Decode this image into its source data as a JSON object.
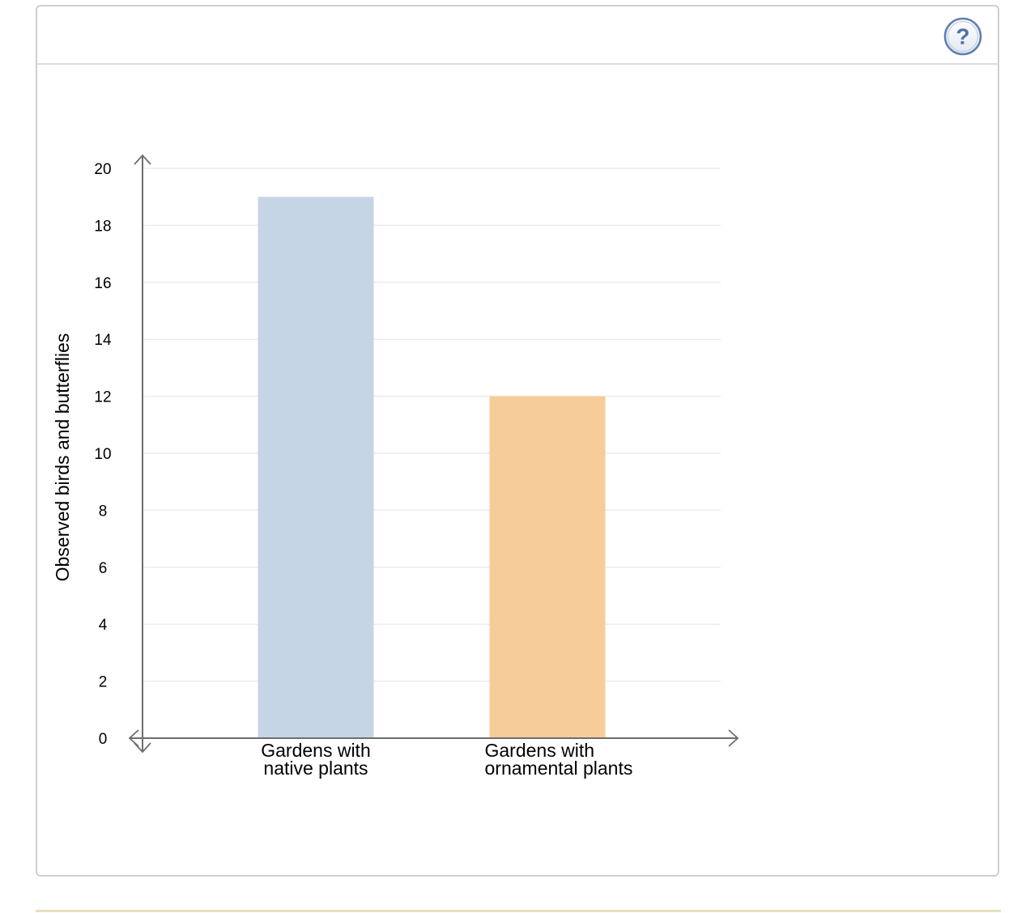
{
  "help": {
    "glyph": "?",
    "icon": "help-icon",
    "color": "#4f72a8"
  },
  "chart_data": {
    "type": "bar",
    "categories": [
      [
        "Gardens with",
        "native plants"
      ],
      [
        "Gardens with",
        "ornamental plants"
      ]
    ],
    "values": [
      19,
      12
    ],
    "colors": [
      "#c5d5e6",
      "#f6cd98"
    ],
    "title": "",
    "xlabel": "",
    "ylabel": "Observed birds and butterflies",
    "ylim": [
      0,
      20
    ],
    "yticks": [
      "0",
      "2",
      "4",
      "6",
      "8",
      "10",
      "12",
      "14",
      "16",
      "18",
      "20"
    ],
    "grid": true,
    "legend": "none"
  }
}
